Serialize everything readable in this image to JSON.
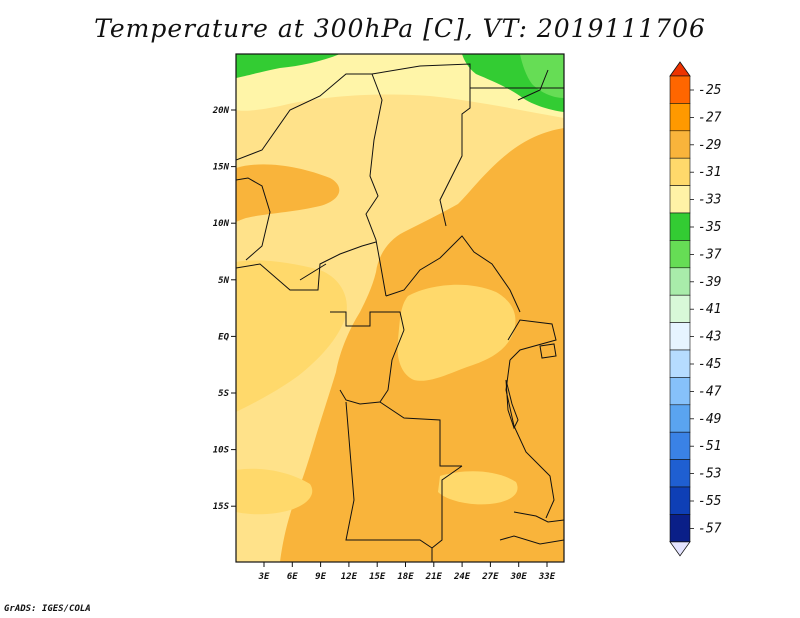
{
  "title": "Temperature at 300hPa [C], VT: 2019111706",
  "credit": "GrADS: IGES/COLA",
  "map": {
    "lon_labels": [
      "3E",
      "6E",
      "9E",
      "12E",
      "15E",
      "18E",
      "21E",
      "24E",
      "27E",
      "30E",
      "33E"
    ],
    "lat_labels": [
      "20N",
      "15N",
      "10N",
      "5N",
      "EQ",
      "5S",
      "10S",
      "15S"
    ],
    "dominant_colors": {
      "very_light_yellow": "#fff5a8",
      "light_yellow": "#ffe28a",
      "orange": "#f9b43b",
      "light_green": "#66dd55",
      "green": "#33cc33"
    }
  },
  "colorbar": {
    "labels": [
      "-25",
      "-27",
      "-29",
      "-31",
      "-33",
      "-35",
      "-37",
      "-39",
      "-41",
      "-43",
      "-45",
      "-47",
      "-49",
      "-51",
      "-53",
      "-55",
      "-57"
    ],
    "colors": [
      "#ee3300",
      "#ff6600",
      "#ff9900",
      "#f9b43b",
      "#ffd96b",
      "#fff2a6",
      "#33cc33",
      "#66dd55",
      "#a9ecaa",
      "#d8f8d8",
      "#e6f4ff",
      "#b6dcff",
      "#86c1fa",
      "#5aa4f0",
      "#3a82e6",
      "#1f5fd1",
      "#0e3fb6",
      "#0a1f88"
    ],
    "end_colors": {
      "top": "#ee3300",
      "bottom": "#e4e4ff"
    }
  }
}
